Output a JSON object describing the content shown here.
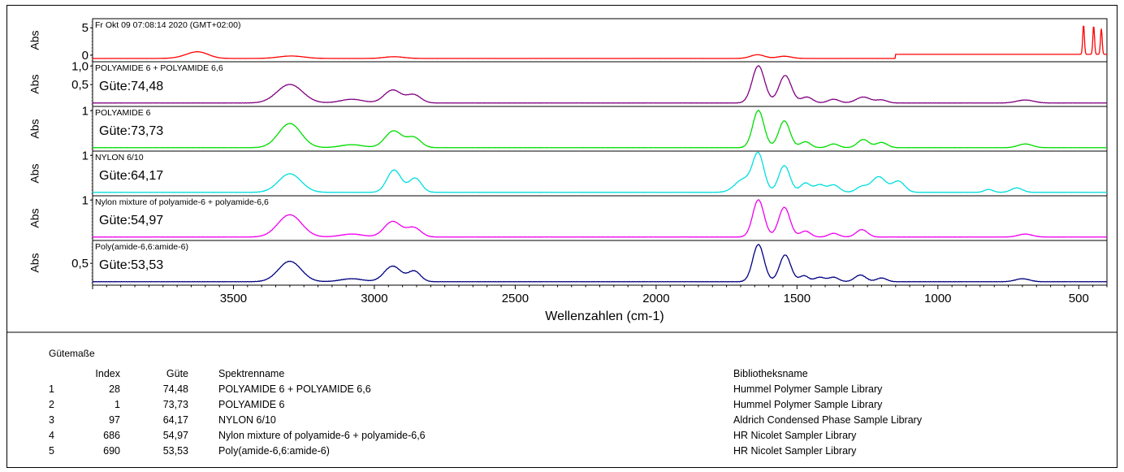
{
  "chart_data": {
    "type": "line",
    "xlabel": "Wellenzahlen (cm-1)",
    "x_reversed": true,
    "xlim": [
      4000,
      400
    ],
    "x_ticks": [
      3500,
      3000,
      2500,
      2000,
      1500,
      1000,
      500
    ],
    "panels": [
      {
        "ylabel": "Abs",
        "title": "Fr Okt 09 07:08:14 2020 (GMT+02:00)",
        "guete": "",
        "color": "#ff0000",
        "y_ticks": [
          0,
          5
        ],
        "ylim": [
          -0.6,
          6.2
        ],
        "peaks": [
          {
            "x": 3620,
            "y": 0.95,
            "w": 35
          },
          {
            "x": 3650,
            "y": 0.5,
            "w": 40
          },
          {
            "x": 3295,
            "y": 0.5,
            "w": 45
          },
          {
            "x": 2930,
            "y": 0.35,
            "w": 35
          },
          {
            "x": 1640,
            "y": 0.75,
            "w": 25
          },
          {
            "x": 1545,
            "y": 0.45,
            "w": 25
          },
          {
            "x": 483,
            "y": 6.0,
            "w": 3
          },
          {
            "x": 447,
            "y": 5.8,
            "w": 3
          },
          {
            "x": 420,
            "y": 5.2,
            "w": 3
          }
        ],
        "plateaus": [
          {
            "x0": 1150,
            "x1": 400,
            "y": 0.75
          }
        ]
      },
      {
        "ylabel": "Abs",
        "title": "POLYAMIDE 6 + POLYAMIDE 6,6",
        "guete": "Güte:74,48",
        "color": "#800080",
        "y_ticks": [
          0.5,
          1.0
        ],
        "y_tick_labels": [
          "0,5",
          "1,0"
        ],
        "ylim": [
          0.0,
          1.05
        ],
        "peaks": [
          {
            "x": 3300,
            "y": 0.5,
            "w": 45
          },
          {
            "x": 3080,
            "y": 0.1,
            "w": 40
          },
          {
            "x": 2935,
            "y": 0.35,
            "w": 30
          },
          {
            "x": 2860,
            "y": 0.22,
            "w": 25
          },
          {
            "x": 1637,
            "y": 1.0,
            "w": 22
          },
          {
            "x": 1542,
            "y": 0.74,
            "w": 22
          },
          {
            "x": 1465,
            "y": 0.16,
            "w": 20
          },
          {
            "x": 1370,
            "y": 0.1,
            "w": 20
          },
          {
            "x": 1265,
            "y": 0.16,
            "w": 25
          },
          {
            "x": 1200,
            "y": 0.08,
            "w": 20
          },
          {
            "x": 690,
            "y": 0.08,
            "w": 30
          }
        ]
      },
      {
        "ylabel": "Abs",
        "title": "POLYAMIDE 6",
        "guete": "Güte:73,73",
        "color": "#00dd00",
        "y_ticks": [
          1
        ],
        "y_tick_labels": [
          "1"
        ],
        "ylim": [
          0.0,
          1.05
        ],
        "peaks": [
          {
            "x": 3300,
            "y": 0.65,
            "w": 40
          },
          {
            "x": 3080,
            "y": 0.08,
            "w": 40
          },
          {
            "x": 2932,
            "y": 0.45,
            "w": 30
          },
          {
            "x": 2860,
            "y": 0.27,
            "w": 25
          },
          {
            "x": 1637,
            "y": 1.0,
            "w": 20
          },
          {
            "x": 1545,
            "y": 0.72,
            "w": 20
          },
          {
            "x": 1470,
            "y": 0.16,
            "w": 18
          },
          {
            "x": 1370,
            "y": 0.1,
            "w": 18
          },
          {
            "x": 1265,
            "y": 0.22,
            "w": 20
          },
          {
            "x": 1200,
            "y": 0.14,
            "w": 20
          },
          {
            "x": 690,
            "y": 0.1,
            "w": 25
          }
        ]
      },
      {
        "ylabel": "Abs",
        "title": "NYLON 6/10",
        "guete": "Güte:64,17",
        "color": "#00dede",
        "y_ticks": [
          1
        ],
        "y_tick_labels": [
          "1"
        ],
        "ylim": [
          0.0,
          1.05
        ],
        "peaks": [
          {
            "x": 3300,
            "y": 0.5,
            "w": 40
          },
          {
            "x": 2930,
            "y": 0.6,
            "w": 25
          },
          {
            "x": 2855,
            "y": 0.38,
            "w": 22
          },
          {
            "x": 1690,
            "y": 0.35,
            "w": 30
          },
          {
            "x": 1637,
            "y": 1.0,
            "w": 20
          },
          {
            "x": 1545,
            "y": 0.72,
            "w": 20
          },
          {
            "x": 1470,
            "y": 0.25,
            "w": 18
          },
          {
            "x": 1420,
            "y": 0.2,
            "w": 18
          },
          {
            "x": 1370,
            "y": 0.2,
            "w": 20
          },
          {
            "x": 1270,
            "y": 0.15,
            "w": 20
          },
          {
            "x": 1210,
            "y": 0.42,
            "w": 25
          },
          {
            "x": 1140,
            "y": 0.3,
            "w": 22
          },
          {
            "x": 820,
            "y": 0.08,
            "w": 15
          },
          {
            "x": 720,
            "y": 0.12,
            "w": 20
          }
        ]
      },
      {
        "ylabel": "Abs",
        "title": "Nylon mixture of polyamide-6 + polyamide-6,6",
        "guete": "Güte:54,97",
        "color": "#ee00ee",
        "y_ticks": [
          1
        ],
        "y_tick_labels": [
          "1"
        ],
        "ylim": [
          0.0,
          1.05
        ],
        "peaks": [
          {
            "x": 3300,
            "y": 0.6,
            "w": 42
          },
          {
            "x": 3080,
            "y": 0.08,
            "w": 40
          },
          {
            "x": 2935,
            "y": 0.42,
            "w": 30
          },
          {
            "x": 2860,
            "y": 0.25,
            "w": 25
          },
          {
            "x": 1637,
            "y": 1.0,
            "w": 20
          },
          {
            "x": 1545,
            "y": 0.8,
            "w": 20
          },
          {
            "x": 1470,
            "y": 0.16,
            "w": 18
          },
          {
            "x": 1370,
            "y": 0.1,
            "w": 18
          },
          {
            "x": 1270,
            "y": 0.2,
            "w": 20
          },
          {
            "x": 690,
            "y": 0.08,
            "w": 25
          }
        ]
      },
      {
        "ylabel": "Abs",
        "title": "Poly(amide-6,6:amide-6)",
        "guete": "Güte:53,53",
        "color": "#000080",
        "y_ticks": [
          0.5
        ],
        "y_tick_labels": [
          "0,5"
        ],
        "ylim": [
          0.0,
          1.05
        ],
        "peaks": [
          {
            "x": 3300,
            "y": 0.55,
            "w": 40
          },
          {
            "x": 3080,
            "y": 0.08,
            "w": 40
          },
          {
            "x": 2935,
            "y": 0.42,
            "w": 30
          },
          {
            "x": 2858,
            "y": 0.28,
            "w": 22
          },
          {
            "x": 1637,
            "y": 1.0,
            "w": 20
          },
          {
            "x": 1542,
            "y": 0.72,
            "w": 20
          },
          {
            "x": 1475,
            "y": 0.16,
            "w": 16
          },
          {
            "x": 1420,
            "y": 0.12,
            "w": 18
          },
          {
            "x": 1370,
            "y": 0.12,
            "w": 18
          },
          {
            "x": 1275,
            "y": 0.18,
            "w": 20
          },
          {
            "x": 1200,
            "y": 0.1,
            "w": 18
          },
          {
            "x": 700,
            "y": 0.08,
            "w": 25
          }
        ]
      }
    ]
  },
  "quality": {
    "title": "Gütemaße",
    "headers": {
      "index": "Index",
      "guete": "Güte",
      "name": "Spektrenname",
      "library": "Bibliotheksname"
    },
    "rows": [
      {
        "n": "1",
        "index": "28",
        "guete": "74,48",
        "name": "POLYAMIDE 6 + POLYAMIDE 6,6",
        "library": "Hummel Polymer Sample Library"
      },
      {
        "n": "2",
        "index": "1",
        "guete": "73,73",
        "name": "POLYAMIDE 6",
        "library": "Hummel Polymer Sample Library"
      },
      {
        "n": "3",
        "index": "97",
        "guete": "64,17",
        "name": "NYLON 6/10",
        "library": "Aldrich Condensed Phase Sample Library"
      },
      {
        "n": "4",
        "index": "686",
        "guete": "54,97",
        "name": "Nylon mixture of polyamide-6 + polyamide-6,6",
        "library": "HR Nicolet Sampler Library"
      },
      {
        "n": "5",
        "index": "690",
        "guete": "53,53",
        "name": "Poly(amide-6,6:amide-6)",
        "library": "HR Nicolet Sampler Library"
      }
    ]
  }
}
